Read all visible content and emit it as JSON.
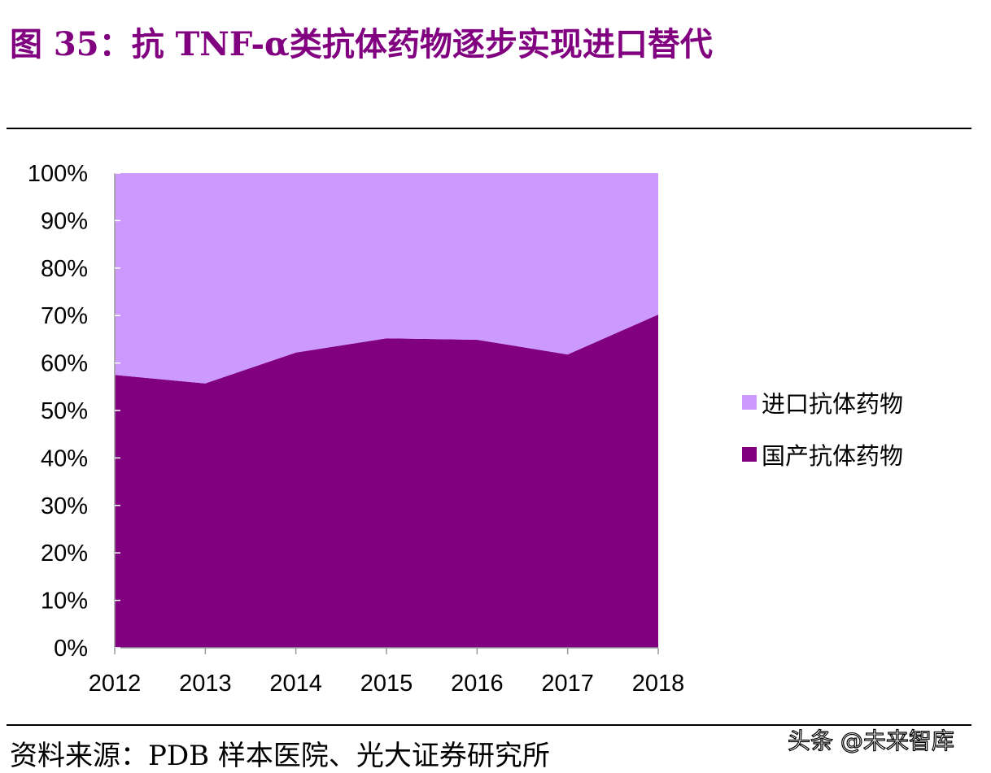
{
  "title": "图 35：抗 TNF-α类抗体药物逐步实现进口替代",
  "source": "资料来源：PDB 样本医院、光大证券研究所",
  "watermark": "头条 @未来智库",
  "chart_data": {
    "type": "area",
    "stacked": true,
    "percent": true,
    "categories": [
      "2012",
      "2013",
      "2014",
      "2015",
      "2016",
      "2017",
      "2018"
    ],
    "series": [
      {
        "name": "国产抗体药物",
        "color": "#800080",
        "values": [
          57.5,
          55.7,
          62.2,
          65.2,
          64.9,
          61.8,
          70.2
        ]
      },
      {
        "name": "进口抗体药物",
        "color": "#CC99FF",
        "values": [
          42.5,
          44.3,
          37.8,
          34.8,
          35.1,
          38.2,
          29.8
        ]
      }
    ],
    "ylim": [
      0,
      100
    ],
    "yticks": [
      "0%",
      "10%",
      "20%",
      "30%",
      "40%",
      "50%",
      "60%",
      "70%",
      "80%",
      "90%",
      "100%"
    ],
    "legend_order": [
      "进口抗体药物",
      "国产抗体药物"
    ],
    "legend_position": "right",
    "grid": false
  }
}
